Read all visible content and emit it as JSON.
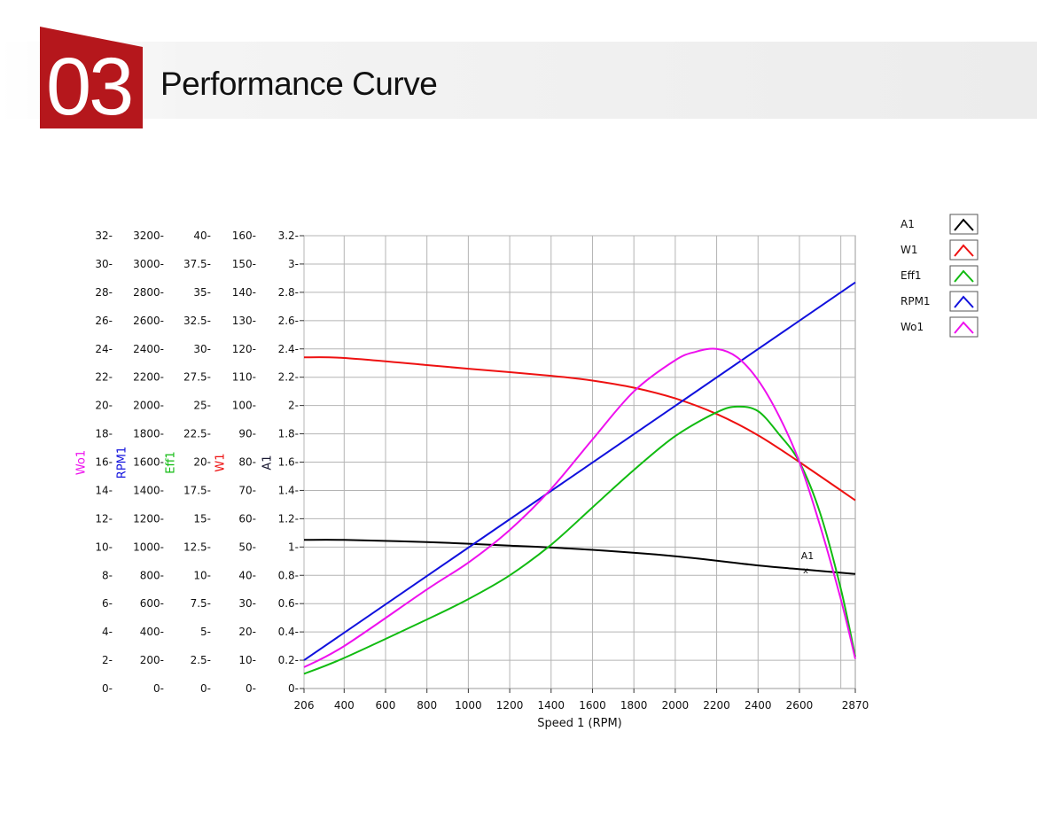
{
  "header": {
    "section_number": "03",
    "title": "Performance Curve"
  },
  "colors": {
    "accent": "#b5171c",
    "grid": "#b4b4b4",
    "A1": "#000000",
    "W1": "#ee1111",
    "Eff1": "#11bb11",
    "RPM1": "#1111dd",
    "Wo1": "#ee11ee"
  },
  "chart_data": {
    "type": "line",
    "xlabel": "Speed 1 (RPM)",
    "xlim": [
      206,
      2870
    ],
    "x_ticks": [
      206,
      400,
      600,
      800,
      1000,
      1200,
      1400,
      1600,
      1800,
      2000,
      2200,
      2400,
      2600,
      2870
    ],
    "x_gridlines": [
      206,
      400,
      600,
      800,
      1000,
      1200,
      1400,
      1600,
      1800,
      2000,
      2200,
      2400,
      2600,
      2800
    ],
    "grid": true,
    "legend_position": "top-right",
    "legend": [
      "A1",
      "W1",
      "Eff1",
      "RPM1",
      "Wo1"
    ],
    "annotation": {
      "text": "A1",
      "marker": "x",
      "series": "A1",
      "x": 2630,
      "y": 0.84
    },
    "axes": [
      {
        "label": "Wo1",
        "color": "#ee11ee",
        "ticks": [
          "0",
          "2",
          "4",
          "6",
          "8",
          "10",
          "12",
          "14",
          "16",
          "18",
          "20",
          "22",
          "24",
          "26",
          "28",
          "30",
          "32"
        ]
      },
      {
        "label": "RPM1",
        "color": "#1111dd",
        "ticks": [
          "0",
          "200",
          "400",
          "600",
          "800",
          "1000",
          "1200",
          "1400",
          "1600",
          "1800",
          "2000",
          "2200",
          "2400",
          "2600",
          "2800",
          "3000",
          "3200"
        ]
      },
      {
        "label": "Eff1",
        "color": "#11bb11",
        "ticks": [
          "0",
          "2.5",
          "5",
          "7.5",
          "10",
          "12.5",
          "15",
          "17.5",
          "20",
          "22.5",
          "25",
          "27.5",
          "30",
          "32.5",
          "35",
          "37.5",
          "40"
        ]
      },
      {
        "label": "W1",
        "color": "#ee1111",
        "ticks": [
          "0",
          "10",
          "20",
          "30",
          "40",
          "50",
          "60",
          "70",
          "80",
          "90",
          "100",
          "110",
          "120",
          "130",
          "140",
          "150",
          "160"
        ]
      },
      {
        "label": "A1",
        "color": "#1a1a33",
        "ticks": [
          "0",
          "0.2",
          "0.4",
          "0.6",
          "0.8",
          "1",
          "1.2",
          "1.4",
          "1.6",
          "1.8",
          "2",
          "2.2",
          "2.4",
          "2.6",
          "2.8",
          "3",
          "3.2"
        ]
      }
    ],
    "series": [
      {
        "name": "A1",
        "color": "#000000",
        "axis_max": 3.2,
        "x": [
          206,
          400,
          800,
          1200,
          1600,
          2000,
          2400,
          2630,
          2870
        ],
        "y": [
          1.05,
          1.05,
          1.035,
          1.01,
          0.98,
          0.935,
          0.87,
          0.84,
          0.81
        ]
      },
      {
        "name": "W1",
        "color": "#ee1111",
        "axis_max": 160,
        "x": [
          206,
          400,
          800,
          1000,
          1400,
          1600,
          1800,
          2000,
          2200,
          2400,
          2600,
          2870
        ],
        "y": [
          117,
          116.8,
          114.3,
          113,
          110.5,
          108.8,
          106.3,
          102.5,
          97,
          89.5,
          80,
          66.5
        ]
      },
      {
        "name": "Eff1",
        "color": "#11bb11",
        "axis_max": 40,
        "x": [
          206,
          400,
          800,
          1000,
          1200,
          1400,
          1600,
          1800,
          2000,
          2200,
          2300,
          2400,
          2500,
          2600,
          2700,
          2800,
          2870
        ],
        "y": [
          1.3,
          2.7,
          6.1,
          7.9,
          10,
          12.7,
          16,
          19.3,
          22.3,
          24.4,
          24.9,
          24.5,
          22.5,
          20,
          15.5,
          8.8,
          2.8
        ]
      },
      {
        "name": "RPM1",
        "color": "#1111dd",
        "axis_max": 3200,
        "x": [
          206,
          2870
        ],
        "y": [
          200,
          2870
        ]
      },
      {
        "name": "Wo1",
        "color": "#ee11ee",
        "axis_max": 32,
        "x": [
          206,
          400,
          800,
          1000,
          1200,
          1400,
          1600,
          1800,
          2000,
          2100,
          2200,
          2300,
          2400,
          2500,
          2600,
          2700,
          2800,
          2870
        ],
        "y": [
          1.5,
          3,
          7,
          8.9,
          11.2,
          14.1,
          17.6,
          21,
          23.2,
          23.8,
          24,
          23.4,
          21.8,
          19.3,
          16,
          11.5,
          6.3,
          2.1
        ]
      }
    ]
  }
}
